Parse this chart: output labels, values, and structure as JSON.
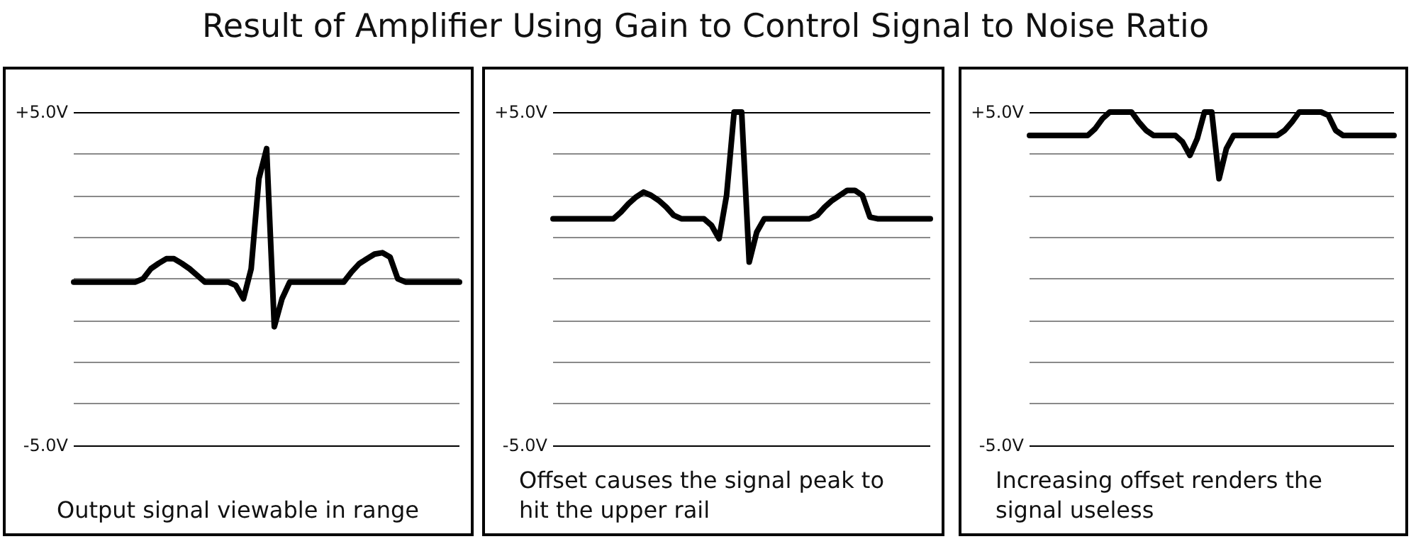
{
  "chart_data": [
    {
      "type": "line",
      "title": "Result of Amplifier Using Gain to Control Signal to Noise Ratio",
      "annotations": [
        "Output signal viewable in range"
      ],
      "categories": [
        null,
        null,
        null,
        null,
        null,
        null,
        null,
        null,
        null,
        null,
        null,
        null,
        null,
        null,
        null,
        null,
        null,
        null,
        null,
        null,
        null,
        null,
        null,
        null,
        null,
        null,
        null,
        null,
        null,
        null,
        null,
        null,
        null,
        null,
        null,
        null,
        null,
        null,
        null,
        null,
        null,
        null,
        null,
        null,
        null,
        null,
        null,
        null,
        null,
        null,
        null
      ],
      "ylim": [
        -5,
        5
      ],
      "yticks": [
        {
          "value": -5,
          "label": "-5.0V"
        },
        {
          "value": -3.75,
          "label": null
        },
        {
          "value": -2.5,
          "label": null
        },
        {
          "value": -1.25,
          "label": null
        },
        {
          "value": 0,
          "label": null
        },
        {
          "value": 1.25,
          "label": null
        },
        {
          "value": 2.5,
          "label": null
        },
        {
          "value": 3.75,
          "label": null
        },
        {
          "value": 5,
          "label": "+5.0V"
        }
      ],
      "tick_labels": "y",
      "grid": "y",
      "line_style": "solid",
      "series": [
        {
          "color": "#000000",
          "values": [
            -0.1,
            -0.1,
            -0.1,
            -0.1,
            -0.1,
            -0.1,
            -0.1,
            -0.1,
            -0.1,
            0.0,
            0.3,
            0.46,
            0.6,
            0.6,
            0.46,
            0.3,
            0.1,
            -0.1,
            -0.1,
            -0.1,
            -0.1,
            -0.2,
            -0.6,
            0.3,
            3.0,
            3.9,
            -1.44,
            -0.6,
            -0.1,
            -0.1,
            -0.1,
            -0.1,
            -0.1,
            -0.1,
            -0.1,
            -0.1,
            0.2,
            0.45,
            0.6,
            0.74,
            0.78,
            0.65,
            0.0,
            -0.1,
            -0.1,
            -0.1,
            -0.1,
            -0.1,
            -0.1,
            -0.1,
            -0.1
          ]
        }
      ]
    },
    {
      "type": "line",
      "annotations": [
        "Offset causes the signal peak to hit the upper rail"
      ],
      "categories": [
        null,
        null,
        null,
        null,
        null,
        null,
        null,
        null,
        null,
        null,
        null,
        null,
        null,
        null,
        null,
        null,
        null,
        null,
        null,
        null,
        null,
        null,
        null,
        null,
        null,
        null,
        null,
        null,
        null,
        null,
        null,
        null,
        null,
        null,
        null,
        null,
        null,
        null,
        null,
        null,
        null,
        null,
        null,
        null,
        null,
        null,
        null,
        null,
        null,
        null,
        null
      ],
      "ylim": [
        -5,
        5
      ],
      "yticks": [
        {
          "value": -5,
          "label": "-5.0V"
        },
        {
          "value": -3.75,
          "label": null
        },
        {
          "value": -2.5,
          "label": null
        },
        {
          "value": -1.25,
          "label": null
        },
        {
          "value": 0,
          "label": null
        },
        {
          "value": 1.25,
          "label": null
        },
        {
          "value": 2.5,
          "label": null
        },
        {
          "value": 3.75,
          "label": null
        },
        {
          "value": 5,
          "label": "+5.0V"
        }
      ],
      "tick_labels": "y",
      "grid": "y",
      "line_style": "solid",
      "series": [
        {
          "color": "#000000",
          "values": [
            1.8,
            1.8,
            1.8,
            1.8,
            1.8,
            1.8,
            1.8,
            1.8,
            1.8,
            2.0,
            2.25,
            2.45,
            2.6,
            2.5,
            2.35,
            2.15,
            1.9,
            1.8,
            1.8,
            1.8,
            1.8,
            1.6,
            1.2,
            2.5,
            5,
            5,
            0.5,
            1.4,
            1.8,
            1.8,
            1.8,
            1.8,
            1.8,
            1.8,
            1.8,
            1.9,
            2.15,
            2.35,
            2.5,
            2.65,
            2.65,
            2.5,
            1.85,
            1.8,
            1.8,
            1.8,
            1.8,
            1.8,
            1.8,
            1.8,
            1.8
          ]
        }
      ]
    },
    {
      "type": "line",
      "annotations": [
        "Increasing offset renders the signal useless"
      ],
      "categories": [
        null,
        null,
        null,
        null,
        null,
        null,
        null,
        null,
        null,
        null,
        null,
        null,
        null,
        null,
        null,
        null,
        null,
        null,
        null,
        null,
        null,
        null,
        null,
        null,
        null,
        null,
        null,
        null,
        null,
        null,
        null,
        null,
        null,
        null,
        null,
        null,
        null,
        null,
        null,
        null,
        null,
        null,
        null,
        null,
        null,
        null,
        null,
        null,
        null,
        null,
        null
      ],
      "ylim": [
        -5,
        5
      ],
      "yticks": [
        {
          "value": -5,
          "label": "-5.0V"
        },
        {
          "value": -3.75,
          "label": null
        },
        {
          "value": -2.5,
          "label": null
        },
        {
          "value": -1.25,
          "label": null
        },
        {
          "value": 0,
          "label": null
        },
        {
          "value": 1.25,
          "label": null
        },
        {
          "value": 2.5,
          "label": null
        },
        {
          "value": 3.75,
          "label": null
        },
        {
          "value": 5,
          "label": "+5.0V"
        }
      ],
      "tick_labels": "y",
      "grid": "y",
      "line_style": "solid",
      "series": [
        {
          "color": "#000000",
          "values": [
            4.3,
            4.3,
            4.3,
            4.3,
            4.3,
            4.3,
            4.3,
            4.3,
            4.3,
            4.5,
            4.8,
            5,
            5,
            5,
            5,
            4.7,
            4.45,
            4.3,
            4.3,
            4.3,
            4.3,
            4.1,
            3.7,
            4.2,
            5,
            5,
            3.0,
            3.9,
            4.3,
            4.3,
            4.3,
            4.3,
            4.3,
            4.3,
            4.3,
            4.45,
            4.7,
            5,
            5,
            5,
            5,
            4.9,
            4.45,
            4.3,
            4.3,
            4.3,
            4.3,
            4.3,
            4.3,
            4.3,
            4.3
          ]
        }
      ]
    }
  ]
}
